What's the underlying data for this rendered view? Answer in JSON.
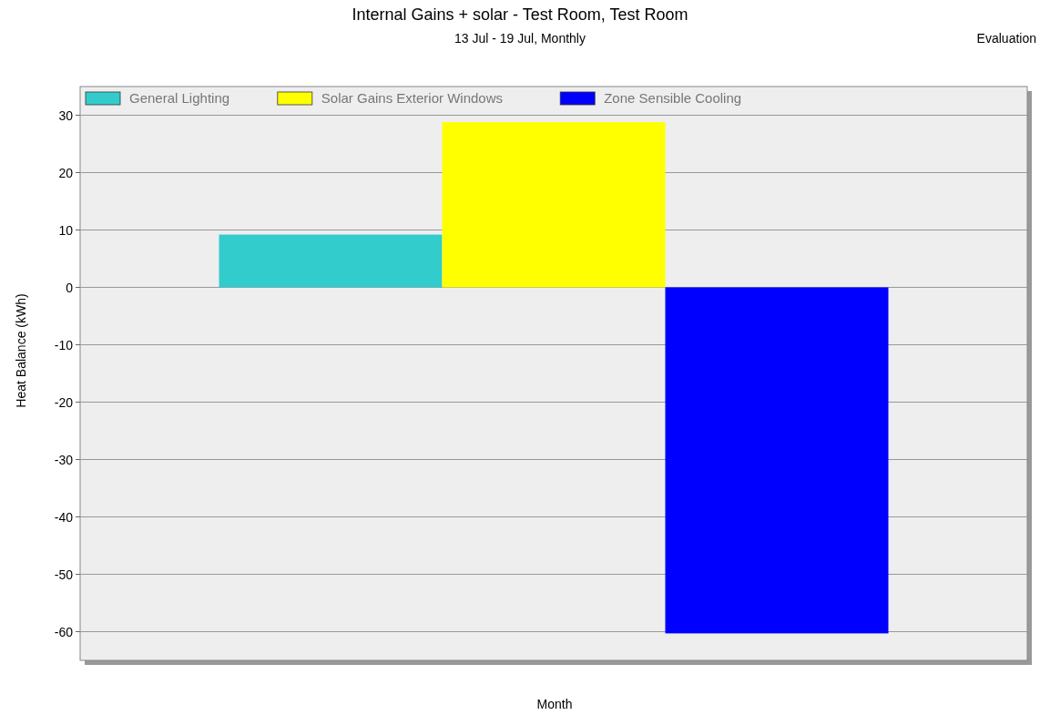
{
  "chart_data": {
    "type": "bar",
    "title": "Internal Gains + solar - Test Room, Test Room",
    "subtitle": "13 Jul - 19 Jul, Monthly",
    "annotations": [
      "Evaluation"
    ],
    "xlabel": "Month",
    "ylabel": "Heat Balance (kWh)",
    "categories": [
      null
    ],
    "series": [
      {
        "name": "General Lighting",
        "color": "#33cccc",
        "values": [
          9.2
        ]
      },
      {
        "name": "Solar Gains Exterior Windows",
        "color": "#ffff00",
        "values": [
          28.8
        ]
      },
      {
        "name": "Zone Sensible Cooling",
        "color": "#0000ff",
        "values": [
          -60.3
        ]
      }
    ],
    "ylim": [
      -65,
      35
    ],
    "yticks": [
      -60,
      -50,
      -40,
      -30,
      -20,
      -10,
      0,
      10,
      20,
      30
    ],
    "grid": "y",
    "legend": "top"
  }
}
